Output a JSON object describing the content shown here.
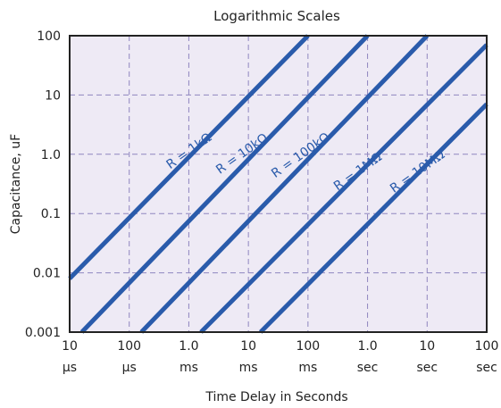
{
  "chart_data": {
    "type": "line",
    "title": "Logarithmic Scales",
    "xlabel": "Time Delay in Seconds",
    "ylabel": "Capacitance, uF",
    "x_scale": "log",
    "y_scale": "log",
    "xlim": [
      1e-05,
      100
    ],
    "ylim": [
      0.001,
      100
    ],
    "grid": true,
    "x_ticks": [
      {
        "value": 1e-05,
        "num": "10",
        "unit": "µs"
      },
      {
        "value": 0.0001,
        "num": "100",
        "unit": "µs"
      },
      {
        "value": 0.001,
        "num": "1.0",
        "unit": "ms"
      },
      {
        "value": 0.01,
        "num": "10",
        "unit": "ms"
      },
      {
        "value": 0.1,
        "num": "100",
        "unit": "ms"
      },
      {
        "value": 1,
        "num": "1.0",
        "unit": "sec"
      },
      {
        "value": 10,
        "num": "10",
        "unit": "sec"
      },
      {
        "value": 100,
        "num": "100",
        "unit": "sec"
      }
    ],
    "y_ticks": [
      {
        "value": 0.001,
        "label": "0.001"
      },
      {
        "value": 0.01,
        "label": "0.01"
      },
      {
        "value": 0.1,
        "label": "0.1"
      },
      {
        "value": 1,
        "label": "1.0"
      },
      {
        "value": 10,
        "label": "10"
      },
      {
        "value": 100,
        "label": "100"
      }
    ],
    "series": [
      {
        "name": "R = 1kΩ",
        "x": [
          1e-05,
          0.1
        ],
        "y": [
          0.008,
          100
        ],
        "label_at": [
          0.0011,
          1.0
        ]
      },
      {
        "name": "R = 10kΩ",
        "x": [
          1.6e-05,
          1.0
        ],
        "y": [
          0.001,
          100
        ],
        "label_at": [
          0.0085,
          0.9
        ]
      },
      {
        "name": "R = 100kΩ",
        "x": [
          0.00016,
          10
        ],
        "y": [
          0.001,
          100
        ],
        "label_at": [
          0.082,
          0.85
        ]
      },
      {
        "name": "R = 1MΩ",
        "x": [
          0.0016,
          100
        ],
        "y": [
          0.001,
          70
        ],
        "label_at": [
          0.75,
          0.45
        ]
      },
      {
        "name": "R = 10MΩ",
        "x": [
          0.016,
          100
        ],
        "y": [
          0.001,
          7
        ],
        "label_at": [
          7.5,
          0.45
        ]
      }
    ],
    "colors": {
      "line": "#2a5bab",
      "plot_bg": "#eeeaf5",
      "grid": "#8f86bf",
      "frame": "#222222"
    }
  }
}
